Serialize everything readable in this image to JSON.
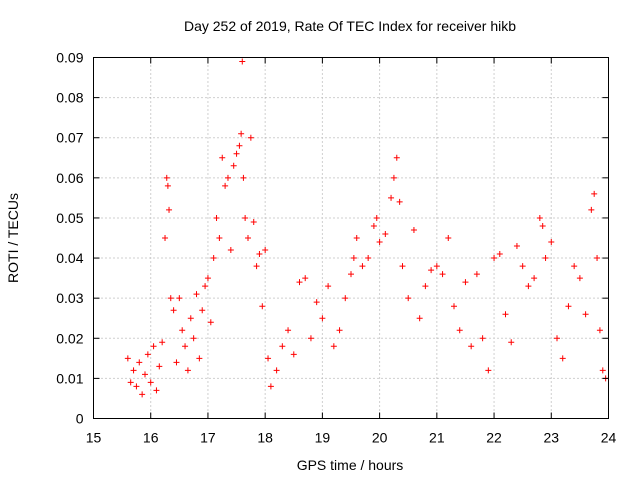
{
  "chart_data": {
    "type": "scatter",
    "title": "Day 252 of 2019, Rate Of TEC Index for receiver hikb",
    "xlabel": "GPS time / hours",
    "ylabel": "ROTI / TECUs",
    "xlim": [
      15,
      24
    ],
    "ylim": [
      0,
      0.09
    ],
    "x_ticks": [
      15,
      16,
      17,
      18,
      19,
      20,
      21,
      22,
      23,
      24
    ],
    "x_tick_labels": [
      "15",
      "16",
      "17",
      "18",
      "19",
      "20",
      "21",
      "22",
      "23",
      "24"
    ],
    "y_ticks": [
      0,
      0.01,
      0.02,
      0.03,
      0.04,
      0.05,
      0.06,
      0.07,
      0.08,
      0.09
    ],
    "y_tick_labels": [
      "0",
      "0.01",
      "0.02",
      "0.03",
      "0.04",
      "0.05",
      "0.06",
      "0.07",
      "0.08",
      "0.09"
    ],
    "grid": true,
    "marker": "+",
    "color": "#ff0000",
    "series": [
      {
        "name": "ROTI",
        "points": [
          [
            15.6,
            0.015
          ],
          [
            15.65,
            0.009
          ],
          [
            15.7,
            0.012
          ],
          [
            15.75,
            0.008
          ],
          [
            15.8,
            0.014
          ],
          [
            15.85,
            0.006
          ],
          [
            15.9,
            0.011
          ],
          [
            15.95,
            0.016
          ],
          [
            16.0,
            0.009
          ],
          [
            16.05,
            0.018
          ],
          [
            16.1,
            0.007
          ],
          [
            16.15,
            0.013
          ],
          [
            16.2,
            0.019
          ],
          [
            16.25,
            0.045
          ],
          [
            16.28,
            0.06
          ],
          [
            16.3,
            0.058
          ],
          [
            16.32,
            0.052
          ],
          [
            16.35,
            0.03
          ],
          [
            16.4,
            0.027
          ],
          [
            16.45,
            0.014
          ],
          [
            16.5,
            0.03
          ],
          [
            16.55,
            0.022
          ],
          [
            16.6,
            0.018
          ],
          [
            16.65,
            0.012
          ],
          [
            16.7,
            0.025
          ],
          [
            16.75,
            0.02
          ],
          [
            16.8,
            0.031
          ],
          [
            16.85,
            0.015
          ],
          [
            16.9,
            0.027
          ],
          [
            16.95,
            0.033
          ],
          [
            17.0,
            0.035
          ],
          [
            17.05,
            0.024
          ],
          [
            17.1,
            0.04
          ],
          [
            17.15,
            0.05
          ],
          [
            17.2,
            0.045
          ],
          [
            17.25,
            0.065
          ],
          [
            17.3,
            0.058
          ],
          [
            17.35,
            0.06
          ],
          [
            17.4,
            0.042
          ],
          [
            17.45,
            0.063
          ],
          [
            17.5,
            0.066
          ],
          [
            17.55,
            0.068
          ],
          [
            17.58,
            0.071
          ],
          [
            17.6,
            0.089
          ],
          [
            17.62,
            0.06
          ],
          [
            17.65,
            0.05
          ],
          [
            17.7,
            0.045
          ],
          [
            17.75,
            0.07
          ],
          [
            17.8,
            0.049
          ],
          [
            17.85,
            0.038
          ],
          [
            17.9,
            0.041
          ],
          [
            17.95,
            0.028
          ],
          [
            18.0,
            0.042
          ],
          [
            18.05,
            0.015
          ],
          [
            18.1,
            0.008
          ],
          [
            18.2,
            0.012
          ],
          [
            18.3,
            0.018
          ],
          [
            18.4,
            0.022
          ],
          [
            18.5,
            0.016
          ],
          [
            18.6,
            0.034
          ],
          [
            18.7,
            0.035
          ],
          [
            18.8,
            0.02
          ],
          [
            18.9,
            0.029
          ],
          [
            19.0,
            0.025
          ],
          [
            19.1,
            0.033
          ],
          [
            19.2,
            0.018
          ],
          [
            19.3,
            0.022
          ],
          [
            19.4,
            0.03
          ],
          [
            19.5,
            0.036
          ],
          [
            19.55,
            0.04
          ],
          [
            19.6,
            0.045
          ],
          [
            19.7,
            0.038
          ],
          [
            19.8,
            0.04
          ],
          [
            19.9,
            0.048
          ],
          [
            19.95,
            0.05
          ],
          [
            20.0,
            0.044
          ],
          [
            20.1,
            0.046
          ],
          [
            20.2,
            0.055
          ],
          [
            20.25,
            0.06
          ],
          [
            20.3,
            0.065
          ],
          [
            20.35,
            0.054
          ],
          [
            20.4,
            0.038
          ],
          [
            20.5,
            0.03
          ],
          [
            20.6,
            0.047
          ],
          [
            20.7,
            0.025
          ],
          [
            20.8,
            0.033
          ],
          [
            20.9,
            0.037
          ],
          [
            21.0,
            0.038
          ],
          [
            21.1,
            0.036
          ],
          [
            21.2,
            0.045
          ],
          [
            21.3,
            0.028
          ],
          [
            21.4,
            0.022
          ],
          [
            21.5,
            0.034
          ],
          [
            21.6,
            0.018
          ],
          [
            21.7,
            0.036
          ],
          [
            21.8,
            0.02
          ],
          [
            21.9,
            0.012
          ],
          [
            22.0,
            0.04
          ],
          [
            22.1,
            0.041
          ],
          [
            22.2,
            0.026
          ],
          [
            22.3,
            0.019
          ],
          [
            22.4,
            0.043
          ],
          [
            22.5,
            0.038
          ],
          [
            22.6,
            0.033
          ],
          [
            22.7,
            0.035
          ],
          [
            22.8,
            0.05
          ],
          [
            22.85,
            0.048
          ],
          [
            22.9,
            0.04
          ],
          [
            23.0,
            0.044
          ],
          [
            23.1,
            0.02
          ],
          [
            23.2,
            0.015
          ],
          [
            23.3,
            0.028
          ],
          [
            23.4,
            0.038
          ],
          [
            23.5,
            0.035
          ],
          [
            23.6,
            0.026
          ],
          [
            23.7,
            0.052
          ],
          [
            23.75,
            0.056
          ],
          [
            23.8,
            0.04
          ],
          [
            23.85,
            0.022
          ],
          [
            23.9,
            0.012
          ],
          [
            23.95,
            0.01
          ]
        ]
      }
    ]
  }
}
